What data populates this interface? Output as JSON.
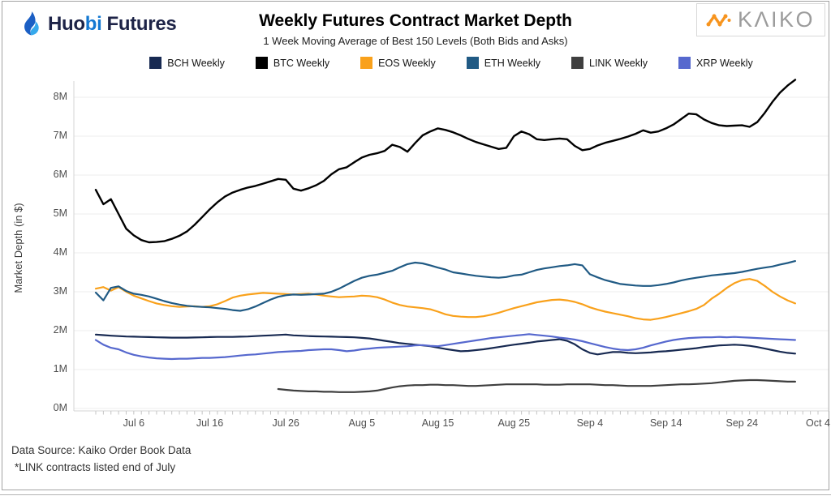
{
  "header": {
    "brand": {
      "huo": "Huo",
      "bi": "bi",
      "futures": "Futures"
    },
    "kaiko_text": "KΛIKO"
  },
  "footer": {
    "line1": "Data Source: Kaiko Order Book Data",
    "line2": "*LINK contracts listed end of July"
  },
  "colors": {
    "huobi_dark": "#1d2347",
    "huobi_blue": "#1478d2",
    "kaiko_orange": "#f7941e",
    "kaiko_gray": "#9c9c9c",
    "grid": "#ededed",
    "axis": "#d4d4d4",
    "tick": "#c4c4c4"
  },
  "chart_data": {
    "type": "line",
    "title": "Weekly Futures Contract Market Depth",
    "subtitle": "1 Week Moving Average of Best 150 Levels (Both Bids and Asks)",
    "ylabel": "Market Depth (in $)",
    "values_unit": "millions of $",
    "ylim": [
      0,
      8.5
    ],
    "grid": true,
    "legend_position": "top",
    "day0_date": "Jul 1",
    "y_ticks": [
      {
        "label": "0M",
        "value": 0
      },
      {
        "label": "1M",
        "value": 1
      },
      {
        "label": "2M",
        "value": 2
      },
      {
        "label": "3M",
        "value": 3
      },
      {
        "label": "4M",
        "value": 4
      },
      {
        "label": "5M",
        "value": 5
      },
      {
        "label": "6M",
        "value": 6
      },
      {
        "label": "7M",
        "value": 7
      },
      {
        "label": "8M",
        "value": 8
      }
    ],
    "x_ticks": [
      {
        "label": "Jul 6",
        "day": 5
      },
      {
        "label": "Jul 16",
        "day": 15
      },
      {
        "label": "Jul 26",
        "day": 25
      },
      {
        "label": "Aug 5",
        "day": 35
      },
      {
        "label": "Aug 15",
        "day": 45
      },
      {
        "label": "Aug 25",
        "day": 55
      },
      {
        "label": "Sep 4",
        "day": 65
      },
      {
        "label": "Sep 14",
        "day": 75
      },
      {
        "label": "Sep 24",
        "day": 85
      },
      {
        "label": "Oct 4",
        "day": 95
      }
    ],
    "minor_tick_days": [
      0,
      95
    ],
    "series": [
      {
        "name": "BCH Weekly",
        "color": "#182a52",
        "start_day": 0,
        "values": [
          1.9,
          1.885,
          1.87,
          1.86,
          1.85,
          1.845,
          1.84,
          1.835,
          1.83,
          1.825,
          1.82,
          1.82,
          1.82,
          1.825,
          1.83,
          1.835,
          1.84,
          1.84,
          1.84,
          1.845,
          1.85,
          1.86,
          1.87,
          1.88,
          1.89,
          1.9,
          1.88,
          1.87,
          1.86,
          1.855,
          1.85,
          1.845,
          1.84,
          1.835,
          1.83,
          1.815,
          1.8,
          1.77,
          1.74,
          1.71,
          1.68,
          1.66,
          1.64,
          1.62,
          1.6,
          1.565,
          1.53,
          1.5,
          1.47,
          1.48,
          1.5,
          1.52,
          1.55,
          1.58,
          1.61,
          1.64,
          1.665,
          1.69,
          1.72,
          1.74,
          1.76,
          1.78,
          1.74,
          1.65,
          1.52,
          1.43,
          1.39,
          1.42,
          1.45,
          1.45,
          1.43,
          1.42,
          1.43,
          1.44,
          1.46,
          1.47,
          1.49,
          1.51,
          1.53,
          1.55,
          1.58,
          1.6,
          1.62,
          1.63,
          1.64,
          1.63,
          1.61,
          1.58,
          1.54,
          1.5,
          1.46,
          1.43,
          1.41
        ]
      },
      {
        "name": "BTC Weekly",
        "color": "#000000",
        "start_day": 0,
        "values": [
          5.62,
          5.25,
          5.38,
          5.0,
          4.62,
          4.45,
          4.33,
          4.27,
          4.28,
          4.3,
          4.36,
          4.44,
          4.55,
          4.72,
          4.92,
          5.12,
          5.3,
          5.45,
          5.55,
          5.62,
          5.68,
          5.72,
          5.78,
          5.84,
          5.9,
          5.88,
          5.65,
          5.6,
          5.66,
          5.74,
          5.85,
          6.02,
          6.15,
          6.2,
          6.33,
          6.45,
          6.52,
          6.56,
          6.62,
          6.78,
          6.72,
          6.6,
          6.82,
          7.02,
          7.12,
          7.2,
          7.16,
          7.1,
          7.02,
          6.93,
          6.85,
          6.79,
          6.73,
          6.67,
          6.7,
          7.0,
          7.12,
          7.05,
          6.92,
          6.9,
          6.92,
          6.94,
          6.92,
          6.75,
          6.64,
          6.67,
          6.76,
          6.83,
          6.88,
          6.93,
          6.99,
          7.06,
          7.15,
          7.09,
          7.12,
          7.2,
          7.3,
          7.44,
          7.58,
          7.56,
          7.43,
          7.34,
          7.28,
          7.26,
          7.27,
          7.28,
          7.24,
          7.36,
          7.6,
          7.88,
          8.12,
          8.3,
          8.45
        ]
      },
      {
        "name": "EOS Weekly",
        "color": "#f9a11b",
        "start_day": 0,
        "values": [
          3.08,
          3.12,
          3.03,
          3.12,
          3.0,
          2.9,
          2.83,
          2.76,
          2.7,
          2.66,
          2.63,
          2.61,
          2.62,
          2.63,
          2.61,
          2.63,
          2.68,
          2.76,
          2.85,
          2.9,
          2.93,
          2.95,
          2.97,
          2.96,
          2.95,
          2.94,
          2.93,
          2.94,
          2.95,
          2.93,
          2.9,
          2.88,
          2.86,
          2.87,
          2.88,
          2.9,
          2.89,
          2.86,
          2.8,
          2.72,
          2.66,
          2.62,
          2.6,
          2.58,
          2.55,
          2.49,
          2.42,
          2.38,
          2.36,
          2.35,
          2.35,
          2.37,
          2.41,
          2.46,
          2.52,
          2.58,
          2.63,
          2.68,
          2.73,
          2.76,
          2.79,
          2.8,
          2.78,
          2.74,
          2.68,
          2.6,
          2.54,
          2.49,
          2.45,
          2.41,
          2.37,
          2.32,
          2.29,
          2.28,
          2.31,
          2.35,
          2.4,
          2.45,
          2.5,
          2.56,
          2.66,
          2.82,
          2.95,
          3.1,
          3.22,
          3.3,
          3.33,
          3.28,
          3.15,
          3.0,
          2.88,
          2.78,
          2.7
        ]
      },
      {
        "name": "ETH Weekly",
        "color": "#205a84",
        "start_day": 0,
        "values": [
          2.98,
          2.78,
          3.1,
          3.14,
          3.02,
          2.95,
          2.92,
          2.88,
          2.82,
          2.76,
          2.71,
          2.67,
          2.64,
          2.62,
          2.61,
          2.6,
          2.58,
          2.56,
          2.53,
          2.51,
          2.55,
          2.62,
          2.71,
          2.8,
          2.87,
          2.91,
          2.93,
          2.92,
          2.93,
          2.94,
          2.95,
          3.0,
          3.08,
          3.18,
          3.28,
          3.36,
          3.41,
          3.44,
          3.49,
          3.54,
          3.63,
          3.71,
          3.75,
          3.73,
          3.68,
          3.62,
          3.57,
          3.5,
          3.47,
          3.44,
          3.41,
          3.39,
          3.37,
          3.36,
          3.38,
          3.42,
          3.44,
          3.5,
          3.56,
          3.6,
          3.63,
          3.66,
          3.68,
          3.71,
          3.68,
          3.45,
          3.37,
          3.3,
          3.25,
          3.2,
          3.18,
          3.16,
          3.15,
          3.15,
          3.17,
          3.2,
          3.24,
          3.29,
          3.33,
          3.36,
          3.39,
          3.42,
          3.44,
          3.46,
          3.48,
          3.51,
          3.55,
          3.59,
          3.62,
          3.65,
          3.7,
          3.74,
          3.79
        ]
      },
      {
        "name": "LINK Weekly",
        "color": "#3f3f3f",
        "start_day": 24,
        "values": [
          0.5,
          0.48,
          0.46,
          0.45,
          0.44,
          0.44,
          0.43,
          0.43,
          0.42,
          0.42,
          0.42,
          0.43,
          0.44,
          0.46,
          0.5,
          0.54,
          0.57,
          0.59,
          0.6,
          0.6,
          0.61,
          0.61,
          0.6,
          0.6,
          0.59,
          0.58,
          0.58,
          0.59,
          0.6,
          0.61,
          0.62,
          0.62,
          0.62,
          0.62,
          0.62,
          0.61,
          0.61,
          0.61,
          0.62,
          0.62,
          0.62,
          0.62,
          0.61,
          0.6,
          0.6,
          0.59,
          0.58,
          0.58,
          0.58,
          0.58,
          0.59,
          0.6,
          0.61,
          0.62,
          0.62,
          0.63,
          0.64,
          0.65,
          0.67,
          0.69,
          0.71,
          0.72,
          0.73,
          0.73,
          0.72,
          0.71,
          0.7,
          0.69,
          0.69
        ]
      },
      {
        "name": "XRP Weekly",
        "color": "#5668ce",
        "start_day": 0,
        "values": [
          1.76,
          1.64,
          1.56,
          1.52,
          1.44,
          1.38,
          1.34,
          1.31,
          1.29,
          1.28,
          1.27,
          1.28,
          1.28,
          1.29,
          1.3,
          1.3,
          1.31,
          1.32,
          1.34,
          1.36,
          1.38,
          1.39,
          1.41,
          1.43,
          1.45,
          1.46,
          1.47,
          1.48,
          1.5,
          1.51,
          1.52,
          1.52,
          1.5,
          1.47,
          1.49,
          1.52,
          1.54,
          1.56,
          1.57,
          1.58,
          1.59,
          1.6,
          1.62,
          1.63,
          1.61,
          1.6,
          1.63,
          1.66,
          1.69,
          1.72,
          1.75,
          1.78,
          1.81,
          1.83,
          1.85,
          1.87,
          1.89,
          1.91,
          1.89,
          1.87,
          1.85,
          1.82,
          1.8,
          1.77,
          1.73,
          1.68,
          1.63,
          1.58,
          1.54,
          1.51,
          1.5,
          1.52,
          1.56,
          1.62,
          1.67,
          1.72,
          1.76,
          1.79,
          1.81,
          1.82,
          1.83,
          1.83,
          1.84,
          1.83,
          1.84,
          1.83,
          1.82,
          1.81,
          1.8,
          1.79,
          1.78,
          1.77,
          1.76
        ]
      }
    ]
  }
}
